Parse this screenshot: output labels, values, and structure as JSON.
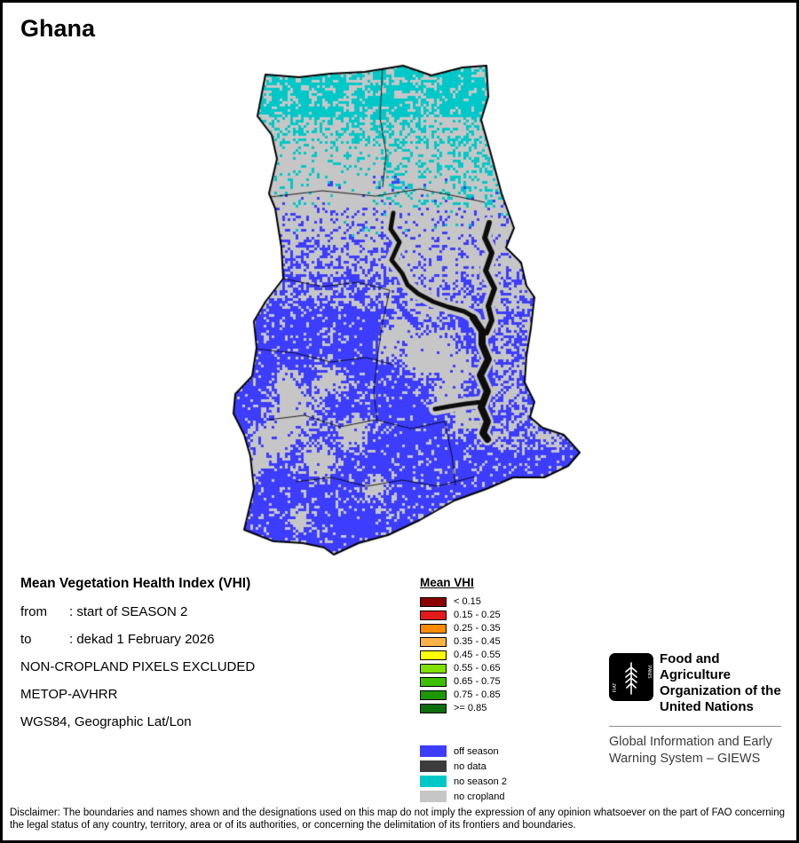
{
  "title": "Ghana",
  "map": {
    "name": "Ghana Mean VHI map",
    "colors": {
      "off_season": "#3d3dff",
      "no_data": "#3c3c3c",
      "no_season2": "#00c8c8",
      "no_cropland": "#c6c6c6",
      "water": "#0d0d0d",
      "outline": "#000000"
    }
  },
  "info": {
    "heading": "Mean Vegetation Health Index (VHI)",
    "rows": [
      {
        "label": "from",
        "value": ": start of SEASON 2"
      },
      {
        "label": "to",
        "value": ": dekad 1 February 2026"
      }
    ],
    "lines": [
      "NON-CROPLAND PIXELS EXCLUDED",
      "METOP-AVHRR",
      "WGS84, Geographic Lat/Lon"
    ]
  },
  "legend": {
    "title": "Mean VHI",
    "classes": [
      {
        "label": "< 0.15",
        "color": "#8b0000"
      },
      {
        "label": "0.15 - 0.25",
        "color": "#e31a1c"
      },
      {
        "label": "0.25 - 0.35",
        "color": "#ff8c00"
      },
      {
        "label": "0.35 - 0.45",
        "color": "#ffb347"
      },
      {
        "label": "0.45 - 0.55",
        "color": "#ffff00"
      },
      {
        "label": "0.55 - 0.65",
        "color": "#7fe000"
      },
      {
        "label": "0.65 - 0.75",
        "color": "#3dbf00"
      },
      {
        "label": "0.75 - 0.85",
        "color": "#1e9600"
      },
      {
        "label": ">= 0.85",
        "color": "#0c6e0c"
      }
    ],
    "categories": [
      {
        "label": "off season",
        "color": "#3d3dff"
      },
      {
        "label": "no data",
        "color": "#3c3c3c"
      },
      {
        "label": "no season 2",
        "color": "#00c8c8"
      },
      {
        "label": "no cropland",
        "color": "#c6c6c6"
      }
    ]
  },
  "footer": {
    "org_lines": [
      "Food and Agriculture",
      "Organization of the",
      "United Nations"
    ],
    "giews_lines": [
      "Global Information and Early",
      "Warning System – GIEWS"
    ],
    "logo_motto_left": "FIAT",
    "logo_motto_right": "PANIS"
  },
  "disclaimer": "Disclaimer: The boundaries and names shown and the designations used on this map do not imply the expression of any opinion whatsoever on the part of FAO concerning the legal status of any country, territory, area or of its authorities, or concerning the delimitation of its frontiers and boundaries."
}
